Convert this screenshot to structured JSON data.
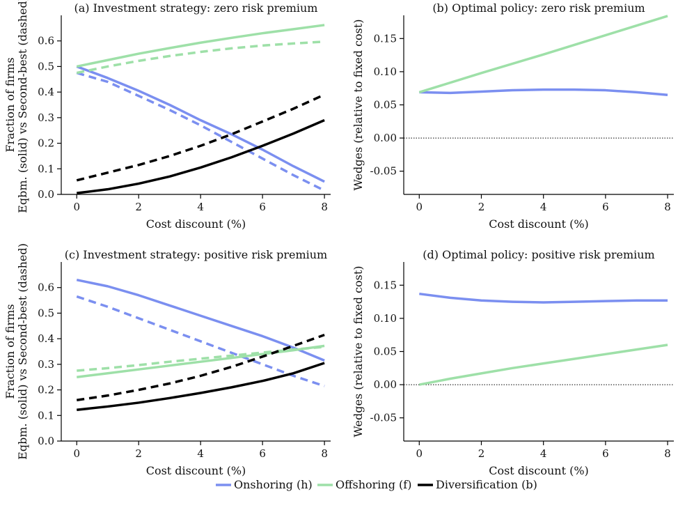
{
  "figure": {
    "legend": [
      {
        "label": "Onshoring (h)",
        "color": "#7b8ff0"
      },
      {
        "label": "Offshoring (f)",
        "color": "#9ee0a8"
      },
      {
        "label": "Diversification (b)",
        "color": "#000000"
      }
    ]
  },
  "chart_data": [
    {
      "type": "line",
      "title": "(a) Investment strategy: zero risk premium",
      "xlabel": "Cost discount (%)",
      "ylabel": [
        "Fraction of firms",
        "Eqbm. (solid) vs Second-best (dashed)"
      ],
      "xlim": [
        -0.5,
        8.2
      ],
      "ylim": [
        0,
        0.7
      ],
      "xticks": [
        0,
        2,
        4,
        6,
        8
      ],
      "yticks": [
        0.0,
        0.1,
        0.2,
        0.3,
        0.4,
        0.5,
        0.6
      ],
      "ytick_labels": [
        "0.0",
        "0.1",
        "0.2",
        "0.3",
        "0.4",
        "0.5",
        "0.6"
      ],
      "series": [
        {
          "group": "Onshoring (h)",
          "style": "solid",
          "color": "#7b8ff0",
          "x": [
            0,
            1,
            2,
            3,
            4,
            5,
            6,
            7,
            8
          ],
          "y": [
            0.5,
            0.455,
            0.405,
            0.35,
            0.29,
            0.235,
            0.175,
            0.11,
            0.05
          ]
        },
        {
          "group": "Onshoring (h)",
          "style": "dashed",
          "color": "#7b8ff0",
          "x": [
            0,
            1,
            2,
            3,
            4,
            5,
            6,
            7,
            8
          ],
          "y": [
            0.475,
            0.44,
            0.385,
            0.33,
            0.27,
            0.205,
            0.14,
            0.075,
            0.015
          ]
        },
        {
          "group": "Offshoring (f)",
          "style": "solid",
          "color": "#9ee0a8",
          "x": [
            0,
            1,
            2,
            3,
            4,
            5,
            6,
            7,
            8
          ],
          "y": [
            0.5,
            0.525,
            0.55,
            0.572,
            0.593,
            0.612,
            0.63,
            0.646,
            0.662
          ]
        },
        {
          "group": "Offshoring (f)",
          "style": "dashed",
          "color": "#9ee0a8",
          "x": [
            0,
            1,
            2,
            3,
            4,
            5,
            6,
            7,
            8
          ],
          "y": [
            0.475,
            0.5,
            0.522,
            0.541,
            0.557,
            0.571,
            0.582,
            0.59,
            0.597
          ]
        },
        {
          "group": "Diversification (b)",
          "style": "solid",
          "color": "#000000",
          "x": [
            0,
            1,
            2,
            3,
            4,
            5,
            6,
            7,
            8
          ],
          "y": [
            0.005,
            0.02,
            0.042,
            0.07,
            0.105,
            0.145,
            0.19,
            0.238,
            0.29
          ]
        },
        {
          "group": "Diversification (b)",
          "style": "dashed",
          "color": "#000000",
          "x": [
            0,
            1,
            2,
            3,
            4,
            5,
            6,
            7,
            8
          ],
          "y": [
            0.055,
            0.085,
            0.115,
            0.15,
            0.19,
            0.235,
            0.285,
            0.335,
            0.39
          ]
        }
      ]
    },
    {
      "type": "line",
      "title": "(b) Optimal policy: zero risk premium",
      "xlabel": "Cost discount (%)",
      "ylabel": [
        "Wedges (relative to fixed cost)"
      ],
      "xlim": [
        -0.5,
        8.2
      ],
      "ylim": [
        -0.085,
        0.185
      ],
      "xticks": [
        0,
        2,
        4,
        6,
        8
      ],
      "yticks": [
        -0.05,
        0.0,
        0.05,
        0.1,
        0.15
      ],
      "ytick_labels": [
        "-0.05",
        "0.00",
        "0.05",
        "0.10",
        "0.15"
      ],
      "zero_line": true,
      "series": [
        {
          "group": "Onshoring (h)",
          "style": "solid",
          "color": "#7b8ff0",
          "x": [
            0,
            1,
            2,
            3,
            4,
            5,
            6,
            7,
            8
          ],
          "y": [
            0.069,
            0.068,
            0.07,
            0.072,
            0.073,
            0.073,
            0.072,
            0.069,
            0.065
          ]
        },
        {
          "group": "Offshoring (f)",
          "style": "solid",
          "color": "#9ee0a8",
          "x": [
            0,
            2,
            4,
            6,
            8
          ],
          "y": [
            0.069,
            0.098,
            0.126,
            0.155,
            0.184
          ]
        }
      ]
    },
    {
      "type": "line",
      "title": "(c) Investment strategy: positive risk premium",
      "xlabel": "Cost discount (%)",
      "ylabel": [
        "Fraction of firms",
        "Eqbm. (solid) vs Second-best (dashed)"
      ],
      "xlim": [
        -0.5,
        8.2
      ],
      "ylim": [
        0,
        0.7
      ],
      "xticks": [
        0,
        2,
        4,
        6,
        8
      ],
      "yticks": [
        0.0,
        0.1,
        0.2,
        0.3,
        0.4,
        0.5,
        0.6
      ],
      "ytick_labels": [
        "0.0",
        "0.1",
        "0.2",
        "0.3",
        "0.4",
        "0.5",
        "0.6"
      ],
      "series": [
        {
          "group": "Onshoring (h)",
          "style": "solid",
          "color": "#7b8ff0",
          "x": [
            0,
            1,
            2,
            3,
            4,
            5,
            6,
            7,
            8
          ],
          "y": [
            0.63,
            0.605,
            0.57,
            0.53,
            0.49,
            0.45,
            0.41,
            0.365,
            0.315
          ]
        },
        {
          "group": "Onshoring (h)",
          "style": "dashed",
          "color": "#7b8ff0",
          "x": [
            0,
            1,
            2,
            3,
            4,
            5,
            6,
            7,
            8
          ],
          "y": [
            0.565,
            0.525,
            0.48,
            0.435,
            0.39,
            0.345,
            0.3,
            0.255,
            0.215
          ]
        },
        {
          "group": "Offshoring (f)",
          "style": "solid",
          "color": "#9ee0a8",
          "x": [
            0,
            1,
            2,
            3,
            4,
            5,
            6,
            7,
            8
          ],
          "y": [
            0.25,
            0.265,
            0.28,
            0.295,
            0.31,
            0.325,
            0.34,
            0.355,
            0.372
          ]
        },
        {
          "group": "Offshoring (f)",
          "style": "dashed",
          "color": "#9ee0a8",
          "x": [
            0,
            1,
            2,
            3,
            4,
            5,
            6,
            7,
            8
          ],
          "y": [
            0.275,
            0.285,
            0.297,
            0.31,
            0.322,
            0.334,
            0.346,
            0.358,
            0.368
          ]
        },
        {
          "group": "Diversification (b)",
          "style": "solid",
          "color": "#000000",
          "x": [
            0,
            1,
            2,
            3,
            4,
            5,
            6,
            7,
            8
          ],
          "y": [
            0.122,
            0.135,
            0.15,
            0.168,
            0.188,
            0.21,
            0.235,
            0.265,
            0.305
          ]
        },
        {
          "group": "Diversification (b)",
          "style": "dashed",
          "color": "#000000",
          "x": [
            0,
            1,
            2,
            3,
            4,
            5,
            6,
            7,
            8
          ],
          "y": [
            0.16,
            0.178,
            0.2,
            0.225,
            0.255,
            0.29,
            0.33,
            0.372,
            0.415
          ]
        }
      ]
    },
    {
      "type": "line",
      "title": "(d) Optimal policy: positive risk premium",
      "xlabel": "Cost discount (%)",
      "ylabel": [
        "Wedges (relative to fixed cost)"
      ],
      "xlim": [
        -0.5,
        8.2
      ],
      "ylim": [
        -0.085,
        0.185
      ],
      "xticks": [
        0,
        2,
        4,
        6,
        8
      ],
      "yticks": [
        -0.05,
        0.0,
        0.05,
        0.1,
        0.15
      ],
      "ytick_labels": [
        "-0.05",
        "0.00",
        "0.05",
        "0.10",
        "0.15"
      ],
      "zero_line": true,
      "series": [
        {
          "group": "Onshoring (h)",
          "style": "solid",
          "color": "#7b8ff0",
          "x": [
            0,
            1,
            2,
            3,
            4,
            5,
            6,
            7,
            8
          ],
          "y": [
            0.137,
            0.131,
            0.127,
            0.125,
            0.124,
            0.125,
            0.126,
            0.127,
            0.127
          ]
        },
        {
          "group": "Offshoring (f)",
          "style": "solid",
          "color": "#9ee0a8",
          "x": [
            0,
            1,
            2,
            3,
            4,
            5,
            6,
            7,
            8
          ],
          "y": [
            0.0,
            0.009,
            0.017,
            0.025,
            0.032,
            0.039,
            0.046,
            0.053,
            0.06
          ]
        }
      ]
    }
  ]
}
